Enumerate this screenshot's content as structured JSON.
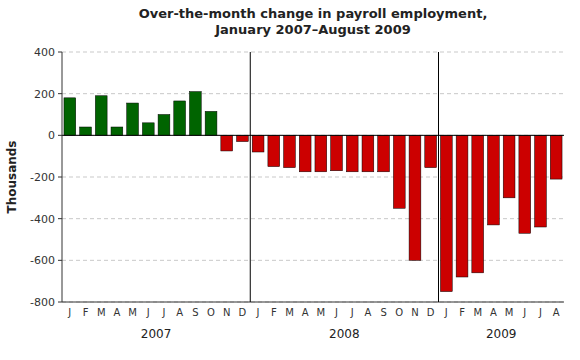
{
  "chart_data": {
    "type": "bar",
    "title": "Over-the-month change in payroll employment,\nJanuary 2007–August 2009",
    "y_label": "Thousands",
    "categories": [
      "J",
      "F",
      "M",
      "A",
      "M",
      "J",
      "J",
      "A",
      "S",
      "O",
      "N",
      "D",
      "J",
      "F",
      "M",
      "A",
      "M",
      "J",
      "J",
      "A",
      "S",
      "O",
      "N",
      "D",
      "J",
      "F",
      "M",
      "A",
      "M",
      "J",
      "J",
      "A"
    ],
    "values": [
      180,
      40,
      190,
      40,
      155,
      60,
      100,
      165,
      210,
      115,
      -75,
      -30,
      -80,
      -150,
      -155,
      -175,
      -175,
      -170,
      -175,
      -175,
      -175,
      -350,
      -600,
      -155,
      -750,
      -680,
      -660,
      -430,
      -300,
      -470,
      -440,
      -210
    ],
    "colors": [
      "#006400",
      "#006400",
      "#006400",
      "#006400",
      "#006400",
      "#006400",
      "#006400",
      "#006400",
      "#006400",
      "#006400",
      "#cc0000",
      "#cc0000",
      "#cc0000",
      "#cc0000",
      "#cc0000",
      "#cc0000",
      "#cc0000",
      "#cc0000",
      "#cc0000",
      "#cc0000",
      "#cc0000",
      "#cc0000",
      "#cc0000",
      "#cc0000",
      "#cc0000",
      "#cc0000",
      "#cc0000",
      "#cc0000",
      "#cc0000",
      "#cc0000",
      "#cc0000",
      "#cc0000"
    ],
    "annotations": [
      "2007",
      "2008",
      "2009"
    ],
    "ylim": [
      -800,
      400
    ],
    "yticks": [
      -800,
      -600,
      -400,
      -200,
      0,
      200,
      400
    ],
    "grid": true
  }
}
